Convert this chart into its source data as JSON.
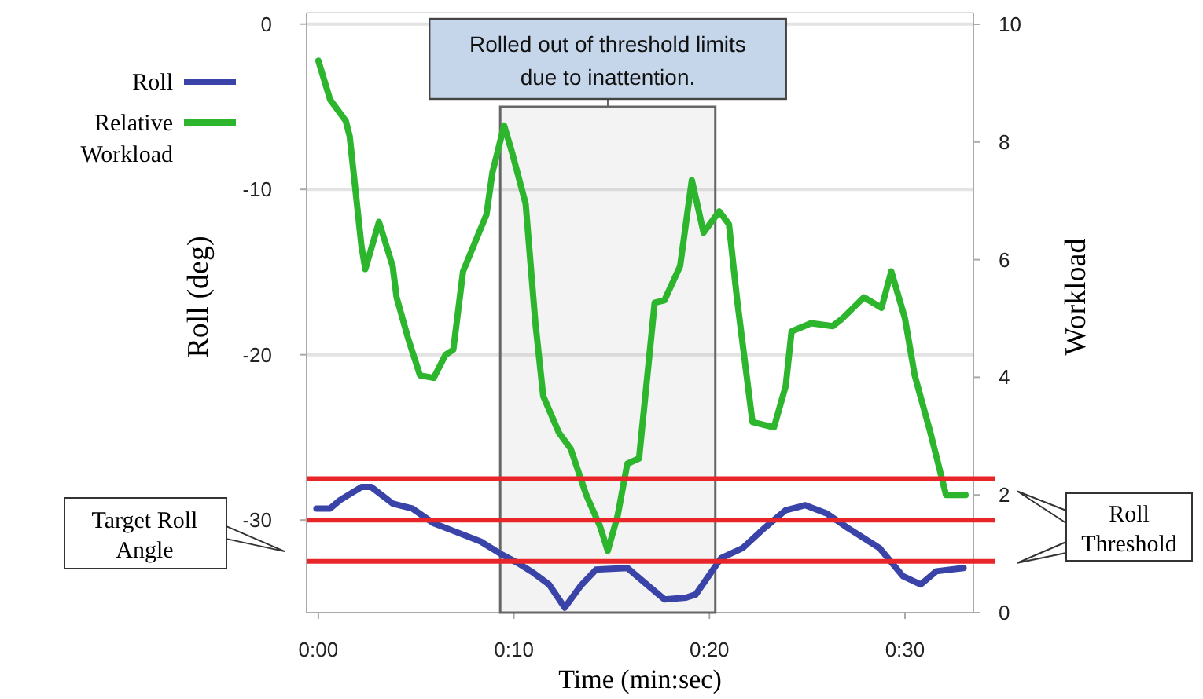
{
  "chart_data": {
    "type": "line",
    "xlabel": "Time (min:sec)",
    "ylabel": "Roll (deg)",
    "y2label": "Workload",
    "xlim": [
      -0.6,
      33.5
    ],
    "xticks": [
      {
        "value": 0,
        "label": "0:00"
      },
      {
        "value": 10,
        "label": "0:10"
      },
      {
        "value": 20,
        "label": "0:20"
      },
      {
        "value": 30,
        "label": "0:30"
      }
    ],
    "ylim": [
      -35.6,
      0.7
    ],
    "yticks": [
      0,
      -10,
      -20,
      -30
    ],
    "y2lim": [
      0,
      10.2
    ],
    "y2ticks": [
      0,
      2,
      4,
      6,
      8,
      10
    ],
    "grid": "y",
    "legend": "top left",
    "line_style": "solid",
    "marker": "none",
    "series": [
      {
        "name": "Roll",
        "color": "#3a44a8",
        "x": [
          -0.1,
          0.6,
          1.1,
          2.2,
          2.7,
          3.8,
          4.8,
          5.9,
          7.0,
          8.3,
          9.4,
          10.2,
          11.0,
          11.8,
          12.6,
          13.4,
          14.2,
          15.8,
          16.9,
          17.7,
          18.8,
          19.3,
          20.6,
          21.7,
          22.8,
          23.9,
          24.9,
          26.0,
          27.1,
          28.7,
          29.9,
          30.8,
          31.6,
          33.0
        ],
        "values": [
          -29.3,
          -29.3,
          -28.8,
          -28.0,
          -28.0,
          -29.0,
          -29.3,
          -30.2,
          -30.7,
          -31.3,
          -32.1,
          -32.6,
          -33.2,
          -33.9,
          -35.3,
          -34.0,
          -33.0,
          -32.9,
          -34.0,
          -34.8,
          -34.7,
          -34.5,
          -32.3,
          -31.7,
          -30.5,
          -29.4,
          -29.1,
          -29.6,
          -30.5,
          -31.7,
          -33.4,
          -33.9,
          -33.1,
          -32.9
        ]
      },
      {
        "name": "Relative Workload",
        "color": "#2db52d",
        "axis": "y2",
        "x": [
          0.0,
          0.6,
          1.4,
          1.6,
          2.2,
          2.4,
          3.1,
          3.8,
          4.0,
          4.6,
          5.2,
          5.9,
          6.5,
          6.9,
          7.4,
          8.6,
          8.9,
          9.5,
          9.9,
          10.6,
          11.1,
          11.5,
          12.3,
          12.9,
          13.7,
          14.4,
          14.8,
          15.3,
          15.8,
          16.4,
          17.2,
          17.7,
          18.5,
          19.1,
          19.7,
          20.5,
          21.0,
          21.4,
          21.8,
          22.2,
          23.3,
          23.9,
          24.2,
          25.2,
          26.3,
          26.8,
          27.9,
          28.8,
          29.3,
          30.0,
          30.5,
          31.3,
          32.1,
          33.1
        ],
        "values": [
          9.38,
          8.72,
          8.36,
          8.1,
          6.24,
          5.84,
          6.64,
          5.89,
          5.36,
          4.65,
          4.03,
          3.99,
          4.38,
          4.47,
          5.8,
          6.77,
          7.48,
          8.28,
          7.83,
          6.95,
          4.92,
          3.68,
          3.06,
          2.79,
          2.0,
          1.47,
          1.05,
          1.64,
          2.53,
          2.62,
          5.27,
          5.31,
          5.89,
          7.35,
          6.46,
          6.82,
          6.6,
          5.36,
          4.3,
          3.24,
          3.15,
          3.85,
          4.78,
          4.92,
          4.87,
          5.0,
          5.36,
          5.18,
          5.8,
          5.0,
          4.03,
          3.06,
          2.0,
          2.0
        ]
      }
    ],
    "ref_lines": [
      {
        "axis": "y",
        "value": -27.5,
        "color": "#e8262a"
      },
      {
        "axis": "y",
        "value": -30,
        "color": "#e8262a"
      },
      {
        "axis": "y",
        "value": -32.5,
        "color": "#e8262a"
      }
    ],
    "bands": [
      {
        "axis": "x",
        "from": 9.3,
        "to": 20.3,
        "label": "Rolled out of threshold limits due to inattention."
      }
    ],
    "annotations": [
      "Target Roll Angle",
      "Roll Threshold"
    ]
  }
}
